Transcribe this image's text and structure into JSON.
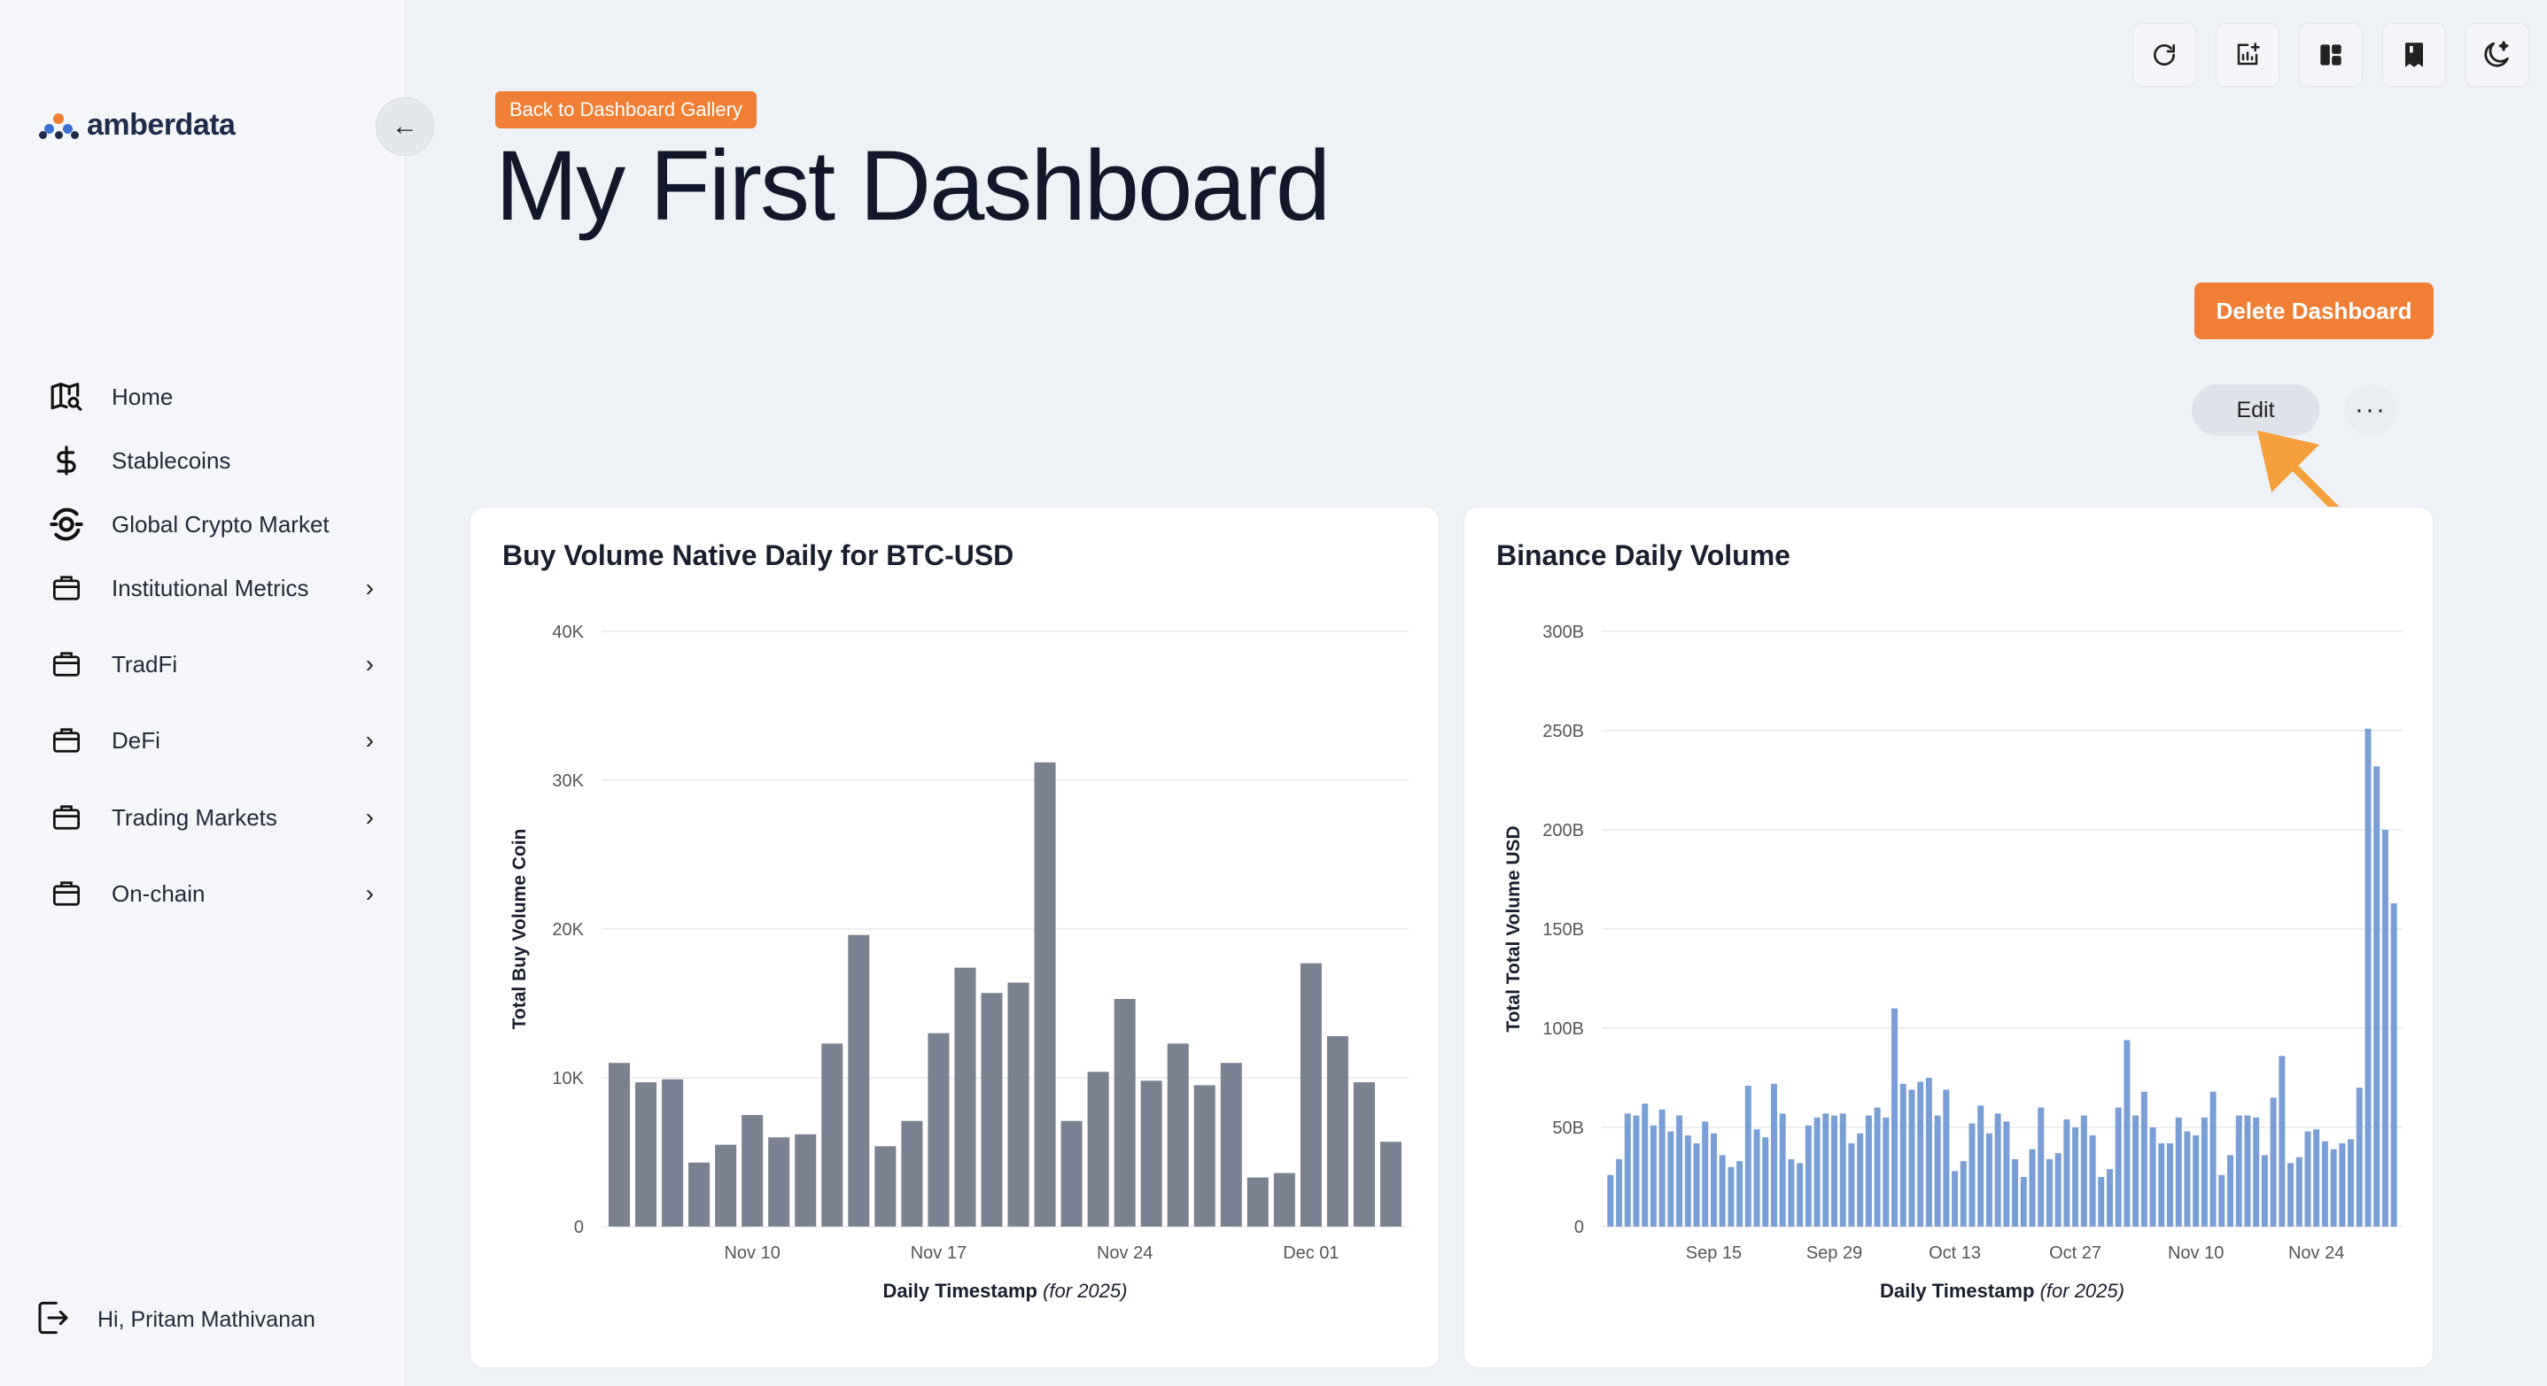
{
  "sidebar": {
    "brand": "amberdata",
    "items": [
      {
        "label": "Home",
        "icon": "map-search-icon",
        "chevron": false
      },
      {
        "label": "Stablecoins",
        "icon": "dollar-icon",
        "chevron": false
      },
      {
        "label": "Global Crypto Market",
        "icon": "globe-orbit-icon",
        "chevron": false
      },
      {
        "label": "Institutional Metrics",
        "icon": "briefcase-icon",
        "chevron": true
      },
      {
        "label": "TradFi",
        "icon": "briefcase-icon",
        "chevron": true
      },
      {
        "label": "DeFi",
        "icon": "briefcase-icon",
        "chevron": true
      },
      {
        "label": "Trading Markets",
        "icon": "briefcase-icon",
        "chevron": true
      },
      {
        "label": "On-chain",
        "icon": "briefcase-icon",
        "chevron": true
      }
    ],
    "user_greeting": "Hi, Pritam Mathivanan"
  },
  "toolbar": {
    "icons": [
      "refresh-icon",
      "add-chart-icon",
      "layout-icon",
      "bookmark-icon",
      "dark-mode-icon"
    ]
  },
  "header": {
    "back_label": "Back to Dashboard Gallery",
    "title": "My First Dashboard",
    "delete_label": "Delete Dashboard",
    "edit_label": "Edit",
    "more_label": "···"
  },
  "colors": {
    "accent": "#f07f35",
    "bar_gray": "#7a8190",
    "bar_blue": "#7a9fd6",
    "arrow": "#f5a03c"
  },
  "chart_data": [
    {
      "type": "bar",
      "title": "Buy Volume Native Daily for BTC-USD",
      "xlabel": "Daily Timestamp",
      "xlabel_suffix": "(for 2025)",
      "ylabel": "Total Buy Volume Coin",
      "ylim": [
        0,
        40000
      ],
      "yticks": [
        0,
        10000,
        20000,
        30000,
        40000
      ],
      "ytick_labels": [
        "0",
        "10K",
        "20K",
        "30K",
        "40K"
      ],
      "xtick_labels": [
        {
          "label": "Nov 10",
          "index": 5
        },
        {
          "label": "Nov 17",
          "index": 12
        },
        {
          "label": "Nov 24",
          "index": 19
        },
        {
          "label": "Dec 01",
          "index": 26
        }
      ],
      "grid": true,
      "values": [
        11000,
        9700,
        9900,
        4300,
        5500,
        7500,
        6000,
        6200,
        12300,
        19600,
        5400,
        7100,
        13000,
        17400,
        15700,
        16400,
        31200,
        7100,
        10400,
        15300,
        9800,
        12300,
        9500,
        11000,
        3300,
        3600,
        17700,
        12800,
        9700,
        5700
      ]
    },
    {
      "type": "bar",
      "title": "Binance Daily Volume",
      "xlabel": "Daily Timestamp",
      "xlabel_suffix": "(for 2025)",
      "ylabel": "Total Total Volume USD",
      "ylim": [
        0,
        300
      ],
      "yticks": [
        0,
        50,
        100,
        150,
        200,
        250,
        300
      ],
      "ytick_labels": [
        "0",
        "50B",
        "100B",
        "150B",
        "200B",
        "250B",
        "300B"
      ],
      "xtick_labels": [
        {
          "label": "Sep 15",
          "index": 12
        },
        {
          "label": "Sep 29",
          "index": 26
        },
        {
          "label": "Oct 13",
          "index": 40
        },
        {
          "label": "Oct 27",
          "index": 54
        },
        {
          "label": "Nov 10",
          "index": 68
        },
        {
          "label": "Nov 24",
          "index": 82
        }
      ],
      "grid": true,
      "values": [
        26,
        34,
        57,
        56,
        62,
        51,
        59,
        48,
        56,
        46,
        42,
        53,
        47,
        36,
        30,
        33,
        71,
        49,
        45,
        72,
        57,
        34,
        32,
        51,
        55,
        57,
        56,
        57,
        42,
        47,
        56,
        60,
        55,
        110,
        72,
        69,
        73,
        75,
        56,
        69,
        28,
        33,
        52,
        61,
        47,
        57,
        53,
        34,
        25,
        39,
        60,
        34,
        37,
        54,
        50,
        56,
        46,
        25,
        29,
        60,
        94,
        56,
        68,
        50,
        42,
        42,
        55,
        48,
        46,
        55,
        68,
        26,
        36,
        56,
        56,
        55,
        36,
        65,
        86,
        32,
        35,
        48,
        49,
        43,
        39,
        42,
        44,
        70,
        251,
        232,
        200,
        163
      ]
    }
  ]
}
